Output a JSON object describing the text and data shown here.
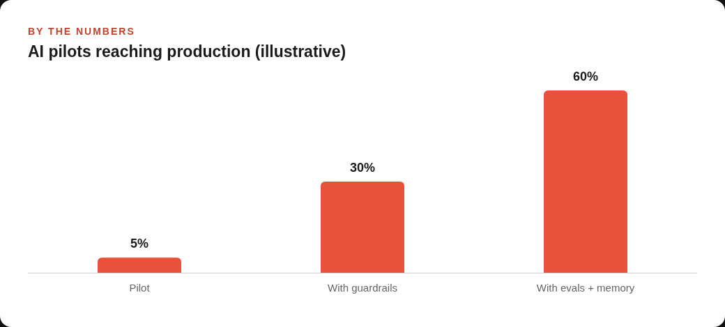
{
  "chart_data": {
    "type": "bar",
    "subtitle": "BY THE NUMBERS",
    "title": "AI pilots reaching production (illustrative)",
    "categories": [
      "Pilot",
      "With guardrails",
      "With evals + memory"
    ],
    "values": [
      5,
      30,
      60
    ],
    "color": "#e8513a",
    "tick_labels": "x",
    "data_labels": true,
    "value_labels": [
      "5%",
      "30%",
      "60%"
    ],
    "grid": false,
    "legend": false
  }
}
